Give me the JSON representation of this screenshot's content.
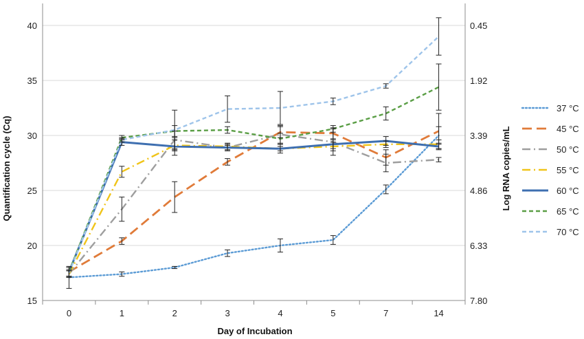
{
  "chart_data": {
    "type": "line",
    "xlabel": "Day of Incubation",
    "ylabel": "Quantification cycle (Cq)",
    "y2label": "Log RNA copies/mL",
    "categories": [
      "0",
      "1",
      "2",
      "3",
      "4",
      "5",
      "7",
      "14"
    ],
    "ylim": [
      15,
      42
    ],
    "yticks": [
      15,
      20,
      25,
      30,
      35,
      40
    ],
    "y2ticks": [
      {
        "at": 40,
        "label": "0.45"
      },
      {
        "at": 35,
        "label": "1.92"
      },
      {
        "at": 30,
        "label": "3.39"
      },
      {
        "at": 25,
        "label": "4.86"
      },
      {
        "at": 20,
        "label": "6.33"
      },
      {
        "at": 15,
        "label": "7.80"
      }
    ],
    "grid": "horizontal",
    "legend_position": "right",
    "series": [
      {
        "name": "37 °C",
        "color": "#5b9bd5",
        "style": "dotted",
        "values": [
          17.1,
          17.4,
          18.0,
          19.3,
          20.0,
          20.5,
          25.1,
          30.0
        ],
        "errors": [
          1.0,
          0.2,
          0.1,
          0.3,
          0.6,
          0.4,
          0.4,
          0.8
        ]
      },
      {
        "name": "45 °C",
        "color": "#e07b39",
        "style": "longdash",
        "values": [
          17.6,
          20.4,
          24.4,
          27.6,
          30.3,
          30.2,
          28.0,
          30.4
        ],
        "errors": [
          0.4,
          0.3,
          1.4,
          0.3,
          0.5,
          0.5,
          0.7,
          1.6
        ]
      },
      {
        "name": "50 °C",
        "color": "#9e9e9e",
        "style": "dashdot",
        "values": [
          17.4,
          23.3,
          29.6,
          28.9,
          30.1,
          29.4,
          27.5,
          27.8
        ],
        "errors": [
          0.3,
          1.1,
          0.8,
          0.3,
          0.8,
          1.2,
          0.8,
          0.2
        ]
      },
      {
        "name": "55 °C",
        "color": "#f0c419",
        "style": "dashdot",
        "values": [
          17.4,
          26.7,
          29.1,
          29.0,
          28.8,
          29.0,
          29.2,
          29.2
        ],
        "errors": [
          0.3,
          0.5,
          0.5,
          0.3,
          0.4,
          0.4,
          0.3,
          0.4
        ]
      },
      {
        "name": "60 °C",
        "color": "#3e6fb0",
        "style": "solid",
        "values": [
          17.6,
          29.4,
          29.0,
          28.9,
          28.8,
          29.2,
          29.5,
          29.0
        ],
        "errors": [
          0.4,
          0.3,
          0.8,
          0.2,
          0.2,
          0.4,
          0.4,
          0.3
        ]
      },
      {
        "name": "65 °C",
        "color": "#5a9e45",
        "style": "shortdash",
        "values": [
          17.6,
          29.8,
          30.4,
          30.5,
          29.7,
          30.6,
          32.0,
          34.4
        ],
        "errors": [
          0.4,
          0.2,
          0.5,
          0.3,
          0.5,
          0.3,
          0.6,
          2.1
        ]
      },
      {
        "name": "70 °C",
        "color": "#9ec4ea",
        "style": "shortdash",
        "values": [
          17.5,
          29.6,
          30.5,
          32.4,
          32.5,
          33.1,
          34.5,
          39.0
        ],
        "errors": [
          0.3,
          0.2,
          1.8,
          1.2,
          1.5,
          0.3,
          0.2,
          1.7
        ]
      }
    ]
  }
}
